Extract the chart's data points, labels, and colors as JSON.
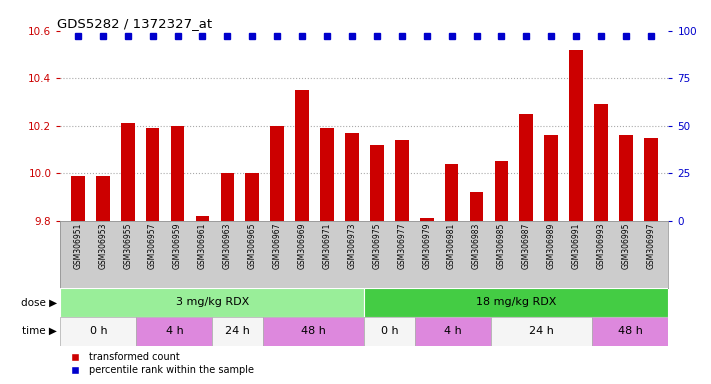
{
  "title": "GDS5282 / 1372327_at",
  "samples": [
    "GSM306951",
    "GSM306953",
    "GSM306955",
    "GSM306957",
    "GSM306959",
    "GSM306961",
    "GSM306963",
    "GSM306965",
    "GSM306967",
    "GSM306969",
    "GSM306971",
    "GSM306973",
    "GSM306975",
    "GSM306977",
    "GSM306979",
    "GSM306981",
    "GSM306983",
    "GSM306985",
    "GSM306987",
    "GSM306989",
    "GSM306991",
    "GSM306993",
    "GSM306995",
    "GSM306997"
  ],
  "bar_values": [
    9.99,
    9.99,
    10.21,
    10.19,
    10.2,
    9.82,
    10.0,
    10.0,
    10.2,
    10.35,
    10.19,
    10.17,
    10.12,
    10.14,
    9.81,
    10.04,
    9.92,
    10.05,
    10.25,
    10.16,
    10.52,
    10.29,
    10.16,
    10.15
  ],
  "percentile_values": [
    97,
    97,
    97,
    97,
    97,
    97,
    97,
    97,
    97,
    97,
    97,
    97,
    97,
    97,
    97,
    97,
    97,
    97,
    97,
    97,
    97,
    97,
    97,
    97
  ],
  "bar_color": "#cc0000",
  "percentile_color": "#0000cc",
  "ymin": 9.8,
  "ymax": 10.6,
  "y2min": 0,
  "y2max": 100,
  "yticks": [
    9.8,
    10.0,
    10.2,
    10.4,
    10.6
  ],
  "y2ticks": [
    0,
    25,
    50,
    75,
    100
  ],
  "ylabel_color": "#cc0000",
  "y2label_color": "#0000cc",
  "bg_color": "#ffffff",
  "grid_color": "#aaaaaa",
  "label_bg": "#cccccc",
  "dose_groups": [
    {
      "label": "3 mg/kg RDX",
      "start": 0,
      "end": 12,
      "color": "#99ee99"
    },
    {
      "label": "18 mg/kg RDX",
      "start": 12,
      "end": 24,
      "color": "#44cc44"
    }
  ],
  "time_groups": [
    {
      "label": "0 h",
      "start": 0,
      "end": 3,
      "color": "#f5f5f5"
    },
    {
      "label": "4 h",
      "start": 3,
      "end": 6,
      "color": "#dd88dd"
    },
    {
      "label": "24 h",
      "start": 6,
      "end": 8,
      "color": "#f5f5f5"
    },
    {
      "label": "48 h",
      "start": 8,
      "end": 12,
      "color": "#dd88dd"
    },
    {
      "label": "0 h",
      "start": 12,
      "end": 14,
      "color": "#f5f5f5"
    },
    {
      "label": "4 h",
      "start": 14,
      "end": 17,
      "color": "#dd88dd"
    },
    {
      "label": "24 h",
      "start": 17,
      "end": 21,
      "color": "#f5f5f5"
    },
    {
      "label": "48 h",
      "start": 21,
      "end": 24,
      "color": "#dd88dd"
    }
  ]
}
